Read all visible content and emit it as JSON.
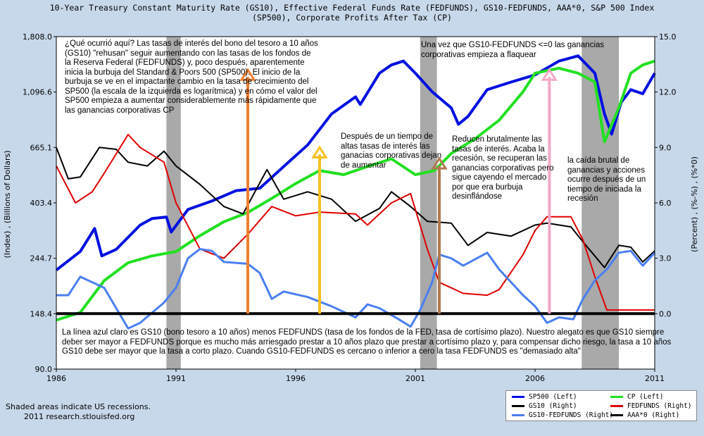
{
  "title": "10-Year Treasury Constant Maturity Rate (GS10), Effective Federal Funds Rate (FEDFUNDS), GS10-FEDFUNDS, AAA*0, S&P 500 Index (SP500), Corporate Profits After Tax (CP)",
  "footer": {
    "recession_note": "Shaded areas indicate US recessions.",
    "source": "2011 research.stlouisfed.org"
  },
  "annotations": {
    "a1": "¿Qué ocurrió aquí? Las tasas de interés del bono del tesoro a 10 años (GS10) \"rehusan\" seguir aumentando con las tasas de los fondos de la Reserva Federal (FEDFUNDS) y, poco después, aparentemente inicia la burbuja del Standard & Poors 500 (SP500). El inicio de la burbuja se ve en el impactante cambio en la tasa de crecimiento del SP500 (la escala de la izquierda es logarítmica) y en cómo el valor del SP500 empieza a aumentar considerablemente más rápidamente que las ganancias corporativas CP",
    "a2": "Después de un tiempo de altas tasas de interés las ganacias corporativas dejan de aumentar",
    "a3": "Una vez que GS10-FEDFUNDS <=0 las ganancias corporativas empieza a flaquear",
    "a4": "Reducen brutalmente las tasas de interés. Acaba la recesión, se recuperan las ganancias corporativas pero sigue cayendo el mercado por que era burbuja desinflándose",
    "a5": "la caída brutal de ganancias y acciones ocurre después de un tiempo de iniciada la recesión",
    "a6": "La línea azul claro es GS10 (bono tesoro a 10 años) menos FEDFUNDS (tasa de los fondos de la FED, tasa de cortísimo plazo). Nuestro alegato es que GS10 siempre deber ser mayor a FEDFUNDS porque es mucho más arriesgado prestar a 10 años plazo que prestar a cortísimo plazo y, para compensar dicho riesgo, la tasa a 10 años GS10 debe ser mayor que la tasa a corto plazo. Cuando GS10-FEDFUNDS es cercano o inferior a cero la tasa FEDFUNDS es \"demasiado alta\""
  },
  "colors": {
    "sp500": "#0010e0",
    "cp": "#22e022",
    "gs10": "#000000",
    "fedfunds": "#e00000",
    "spread": "#4a7ff0",
    "aaa": "#000000",
    "recession": "#a9a9a9",
    "plot_bg": "#ffffff",
    "arrow_orange": "#f08030",
    "arrow_yellow": "#f8c020",
    "arrow_brown": "#b07850",
    "arrow_pink": "#f4a8c8"
  },
  "chart_data": {
    "type": "line",
    "title": "10-Year Treasury Constant Maturity Rate (GS10), Effective Federal Funds Rate (FEDFUNDS), GS10-FEDFUNDS, AAA*0, S&P 500 Index (SP500), Corporate Profits After Tax (CP)",
    "ylabel_left": "(Index) , (Billions of Dollars)",
    "ylabel_right": "(Percent) , (%-%) , (%*0)",
    "x_range": [
      1986,
      2011
    ],
    "x_ticks": [
      "1986",
      "1991",
      "1996",
      "2001",
      "2006",
      "2011"
    ],
    "y_left_scale": "log",
    "y_left_range": [
      90.0,
      1808.0
    ],
    "y_left_ticks": [
      "1,808.0",
      "1,096.6",
      "665.1",
      "403.4",
      "244.7",
      "148.4",
      "90.0"
    ],
    "y_right_range": [
      -3.0,
      15.0
    ],
    "y_right_ticks": [
      "15.0",
      "12.0",
      "9.0",
      "6.0",
      "3.0",
      "0.0"
    ],
    "grid": false,
    "recessions": [
      [
        1990.6,
        1991.2
      ],
      [
        2001.2,
        2001.9
      ],
      [
        2007.95,
        2009.5
      ]
    ],
    "series": [
      {
        "name": "SP500 (Left)",
        "axis": "left",
        "x": [
          1986.0,
          1987.0,
          1987.6,
          1987.9,
          1988.5,
          1989.5,
          1990.0,
          1990.6,
          1990.8,
          1991.5,
          1992.5,
          1993.5,
          1994.5,
          1995.5,
          1996.5,
          1997.5,
          1998.5,
          1998.7,
          1999.5,
          2000.0,
          2000.5,
          2001.0,
          2001.7,
          2002.5,
          2002.8,
          2003.2,
          2004.0,
          2005.0,
          2006.0,
          2007.0,
          2007.8,
          2008.5,
          2008.9,
          2009.2,
          2009.6,
          2010.0,
          2010.5,
          2011.0
        ],
        "y": [
          220,
          260,
          320,
          250,
          265,
          330,
          350,
          355,
          310,
          380,
          410,
          450,
          460,
          560,
          680,
          900,
          1050,
          980,
          1300,
          1400,
          1450,
          1300,
          1100,
          950,
          820,
          880,
          1120,
          1200,
          1280,
          1450,
          1520,
          1300,
          900,
          750,
          1000,
          1120,
          1080,
          1300
        ]
      },
      {
        "name": "CP (Left)",
        "axis": "left",
        "x": [
          1986.0,
          1987.0,
          1988.0,
          1989.0,
          1990.0,
          1991.0,
          1992.0,
          1993.0,
          1994.0,
          1995.0,
          1996.0,
          1997.0,
          1998.0,
          1999.0,
          2000.0,
          2001.0,
          2001.8,
          2002.5,
          2003.5,
          2004.5,
          2005.5,
          2006.0,
          2007.0,
          2007.8,
          2008.5,
          2008.9,
          2009.5,
          2010.0,
          2010.5,
          2011.0
        ],
        "y": [
          140,
          150,
          200,
          235,
          250,
          260,
          300,
          340,
          370,
          420,
          480,
          540,
          520,
          560,
          600,
          520,
          540,
          630,
          720,
          850,
          1100,
          1300,
          1360,
          1300,
          1200,
          700,
          950,
          1300,
          1400,
          1450
        ]
      },
      {
        "name": "GS10 (Right)",
        "axis": "right",
        "x": [
          1986.0,
          1986.5,
          1987.0,
          1987.8,
          1988.5,
          1989.0,
          1989.8,
          1990.5,
          1991.0,
          1992.0,
          1993.0,
          1993.8,
          1994.8,
          1995.5,
          1996.5,
          1997.5,
          1998.5,
          1999.5,
          2000.0,
          2000.8,
          2001.5,
          2002.5,
          2003.2,
          2004.0,
          2005.0,
          2006.0,
          2006.5,
          2007.5,
          2008.0,
          2008.9,
          2009.5,
          2010.0,
          2010.5,
          2011.0
        ],
        "y": [
          9.0,
          7.3,
          7.4,
          9.0,
          8.9,
          8.2,
          8.0,
          8.8,
          8.0,
          7.0,
          5.8,
          5.4,
          7.8,
          6.2,
          6.6,
          6.2,
          5.0,
          5.7,
          6.6,
          5.8,
          5.0,
          4.9,
          3.7,
          4.4,
          4.2,
          4.8,
          4.9,
          4.7,
          3.9,
          2.5,
          3.7,
          3.6,
          2.8,
          3.4
        ]
      },
      {
        "name": "FEDFUNDS (Right)",
        "axis": "right",
        "x": [
          1986.0,
          1986.8,
          1987.5,
          1988.0,
          1989.0,
          1989.5,
          1990.5,
          1991.0,
          1992.0,
          1993.0,
          1994.0,
          1995.0,
          1996.0,
          1997.0,
          1998.5,
          1999.0,
          2000.0,
          2000.8,
          2001.5,
          2002.0,
          2003.0,
          2004.0,
          2004.5,
          2005.5,
          2006.0,
          2006.5,
          2007.5,
          2008.0,
          2008.5,
          2009.0,
          2010.0,
          2011.0
        ],
        "y": [
          8.0,
          6.0,
          6.6,
          7.6,
          9.7,
          9.0,
          8.2,
          6.0,
          3.5,
          3.0,
          4.3,
          5.8,
          5.3,
          5.5,
          5.4,
          4.8,
          6.0,
          6.5,
          3.5,
          1.7,
          1.1,
          1.0,
          1.3,
          3.2,
          4.5,
          5.25,
          5.25,
          4.0,
          2.0,
          0.2,
          0.2,
          0.2
        ]
      },
      {
        "name": "GS10-FEDFUNDS (Right)",
        "axis": "right",
        "x": [
          1986.0,
          1986.5,
          1987.0,
          1988.0,
          1989.0,
          1989.5,
          1990.5,
          1991.0,
          1991.5,
          1992.0,
          1992.5,
          1993.0,
          1994.0,
          1994.5,
          1995.0,
          1995.5,
          1996.5,
          1997.5,
          1998.5,
          1999.0,
          1999.5,
          2000.3,
          2000.8,
          2001.2,
          2001.7,
          2002.0,
          2002.5,
          2003.0,
          2004.0,
          2004.5,
          2005.5,
          2006.0,
          2006.5,
          2007.0,
          2007.6,
          2008.0,
          2008.5,
          2009.0,
          2009.5,
          2010.0,
          2010.5,
          2011.0
        ],
        "y": [
          1.0,
          1.0,
          2.0,
          1.4,
          -0.8,
          -0.5,
          0.6,
          1.4,
          3.0,
          3.5,
          3.4,
          2.8,
          2.7,
          2.2,
          0.8,
          1.2,
          0.9,
          0.4,
          -0.2,
          0.5,
          0.3,
          -0.3,
          -0.7,
          0.2,
          1.7,
          3.2,
          3.0,
          2.6,
          3.3,
          2.4,
          1.0,
          0.4,
          -0.5,
          -0.2,
          -0.3,
          0.8,
          1.8,
          2.4,
          3.3,
          3.4,
          2.6,
          3.3
        ]
      },
      {
        "name": "AAA*0 (Right)",
        "axis": "right",
        "x": [
          1986,
          2011
        ],
        "y": [
          0.0,
          0.0
        ]
      }
    ]
  },
  "legend": {
    "items": [
      "SP500 (Left)",
      "CP (Left)",
      "GS10 (Right)",
      "FEDFUNDS (Right)",
      "GS10-FEDFUNDS (Right)",
      "AAA*0 (Right)"
    ]
  }
}
